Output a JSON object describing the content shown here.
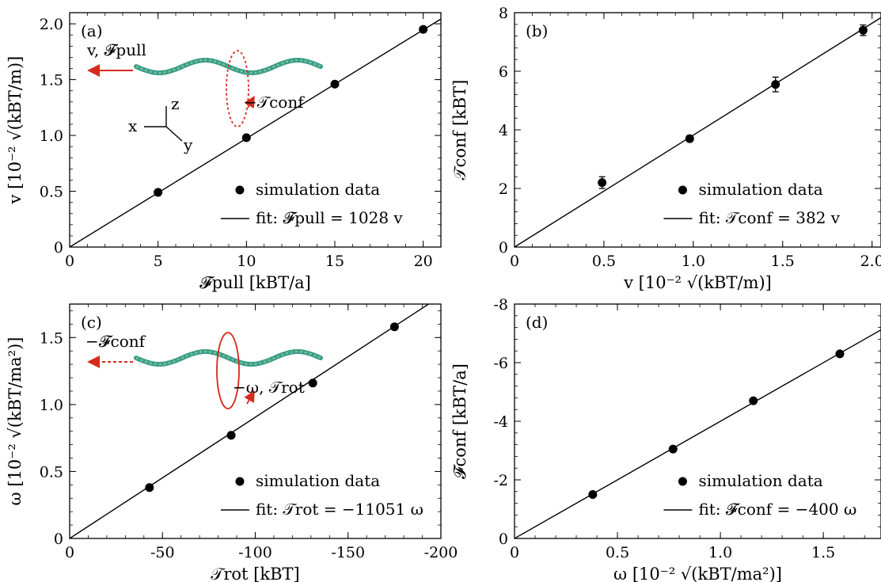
{
  "chart_data": [
    {
      "panel": "a",
      "panel_label": "(a)",
      "type": "scatter",
      "xlabel": "𝓕pull [kBT/a]",
      "ylabel": "v [10⁻² √(kBT/m)]",
      "xlim": [
        0,
        21
      ],
      "ylim": [
        0,
        2.1
      ],
      "xticks": [
        0,
        5,
        10,
        15,
        20
      ],
      "xtick_labels": [
        "0",
        "5",
        "10",
        "15",
        "20"
      ],
      "yticks": [
        0,
        0.5,
        1.0,
        1.5,
        2.0
      ],
      "ytick_labels": [
        "0",
        "0.5",
        "1.0",
        "1.5",
        "2.0"
      ],
      "series": [
        {
          "name": "simulation data",
          "kind": "points",
          "x": [
            5,
            10,
            15,
            20
          ],
          "y": [
            0.49,
            0.98,
            1.46,
            1.95
          ]
        },
        {
          "name": "fit: 𝓕pull = 1028 v",
          "kind": "line",
          "slope": 0.0973
        }
      ],
      "legend": "bottom-right",
      "inset": {
        "labels": [
          "v, 𝓕pull",
          "−𝒯conf",
          "x",
          "y",
          "z"
        ],
        "arrow_color": "#d62a1c",
        "filament_colors": [
          "#3a9c8c",
          "#7cc48a"
        ]
      }
    },
    {
      "panel": "b",
      "panel_label": "(b)",
      "type": "scatter",
      "xlabel": "v [10⁻² √(kBT/m)]",
      "ylabel": "𝒯conf [kBT]",
      "xlim": [
        0,
        2.05
      ],
      "ylim": [
        0,
        8
      ],
      "xticks": [
        0,
        0.5,
        1.0,
        1.5,
        2.0
      ],
      "xtick_labels": [
        "0",
        "0.5",
        "1.0",
        "1.5",
        "2.0"
      ],
      "yticks": [
        0,
        2,
        4,
        6,
        8
      ],
      "ytick_labels": [
        "0",
        "2",
        "4",
        "6",
        "8"
      ],
      "series": [
        {
          "name": "simulation data",
          "kind": "points",
          "x": [
            0.49,
            0.98,
            1.46,
            1.95
          ],
          "y": [
            2.2,
            3.7,
            5.55,
            7.4
          ],
          "err": [
            0.2,
            0.1,
            0.25,
            0.18
          ]
        },
        {
          "name": "fit: 𝒯conf = 382 v",
          "kind": "line",
          "slope": 3.82
        }
      ],
      "legend": "bottom-right"
    },
    {
      "panel": "c",
      "panel_label": "(c)",
      "type": "scatter",
      "xlabel": "𝒯rot [kBT]",
      "ylabel": "ω [10⁻² √(kBT/ma²)]",
      "xlim": [
        0,
        -200
      ],
      "ylim": [
        0,
        1.75
      ],
      "xticks": [
        0,
        -50,
        -100,
        -150,
        -200
      ],
      "xtick_labels": [
        "0",
        "-50",
        "-100",
        "-150",
        "-200"
      ],
      "yticks": [
        0,
        0.5,
        1.0,
        1.5
      ],
      "ytick_labels": [
        "0",
        "0.5",
        "1.0",
        "1.5"
      ],
      "series": [
        {
          "name": "simulation data",
          "kind": "points",
          "x": [
            -43,
            -87,
            -131,
            -175
          ],
          "y": [
            0.38,
            0.77,
            1.16,
            1.58
          ]
        },
        {
          "name": "fit: 𝒯rot = −11051 ω",
          "kind": "line",
          "slope": -0.00905
        }
      ],
      "legend": "bottom-right",
      "inset": {
        "labels": [
          "−𝓕conf",
          "−ω, 𝒯rot"
        ],
        "arrow_color": "#d62a1c",
        "filament_colors": [
          "#3a9c8c",
          "#7cc48a"
        ]
      }
    },
    {
      "panel": "d",
      "panel_label": "(d)",
      "type": "scatter",
      "xlabel": "ω [10⁻² √(kBT/ma²)]",
      "ylabel": "𝓕conf [kBT/a]",
      "xlim": [
        0,
        1.78
      ],
      "ylim": [
        0,
        -8
      ],
      "xticks": [
        0,
        0.5,
        1.0,
        1.5
      ],
      "xtick_labels": [
        "0",
        "0.5",
        "1.0",
        "1.5"
      ],
      "yticks": [
        0,
        -2,
        -4,
        -6,
        -8
      ],
      "ytick_labels": [
        "0",
        "-2",
        "-4",
        "-6",
        "-8"
      ],
      "series": [
        {
          "name": "simulation data",
          "kind": "points",
          "x": [
            0.38,
            0.77,
            1.16,
            1.58
          ],
          "y": [
            -1.5,
            -3.05,
            -4.7,
            -6.3
          ]
        },
        {
          "name": "fit: 𝓕conf = −400 ω",
          "kind": "line",
          "slope": -4.0
        }
      ],
      "legend": "bottom-right"
    }
  ]
}
